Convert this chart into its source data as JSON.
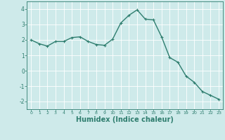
{
  "x": [
    0,
    1,
    2,
    3,
    4,
    5,
    6,
    7,
    8,
    9,
    10,
    11,
    12,
    13,
    14,
    15,
    16,
    17,
    18,
    19,
    20,
    21,
    22,
    23
  ],
  "y": [
    2.0,
    1.75,
    1.6,
    1.9,
    1.9,
    2.15,
    2.2,
    1.9,
    1.7,
    1.65,
    2.05,
    3.1,
    3.6,
    3.95,
    3.35,
    3.3,
    2.2,
    0.85,
    0.55,
    -0.35,
    -0.75,
    -1.35,
    -1.6,
    -1.85
  ],
  "line_color": "#2e7d6e",
  "marker": "+",
  "marker_size": 3,
  "linewidth": 1.0,
  "xlabel": "Humidex (Indice chaleur)",
  "xlabel_fontsize": 7,
  "xlabel_color": "#2e7d6e",
  "xlabel_bold": true,
  "background_color": "#ceeaea",
  "grid_color": "#ffffff",
  "tick_color": "#2e7d6e",
  "tick_labelcolor": "#2e7d6e",
  "xlim": [
    -0.5,
    23.5
  ],
  "ylim": [
    -2.5,
    4.5
  ],
  "yticks": [
    -2,
    -1,
    0,
    1,
    2,
    3,
    4
  ],
  "xticks": [
    0,
    1,
    2,
    3,
    4,
    5,
    6,
    7,
    8,
    9,
    10,
    11,
    12,
    13,
    14,
    15,
    16,
    17,
    18,
    19,
    20,
    21,
    22,
    23
  ],
  "xtick_labels": [
    "0",
    "1",
    "2",
    "3",
    "4",
    "5",
    "6",
    "7",
    "8",
    "9",
    "10",
    "11",
    "12",
    "13",
    "14",
    "15",
    "16",
    "17",
    "18",
    "19",
    "20",
    "21",
    "22",
    "23"
  ]
}
